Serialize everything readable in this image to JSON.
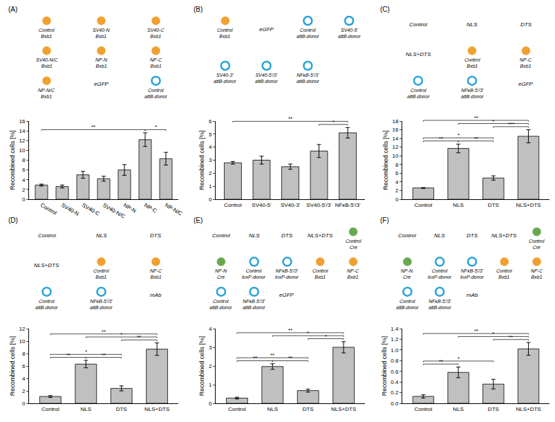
{
  "chart_data": [
    {
      "type": "bar",
      "title": "(A)",
      "annotations": [
        "Control Bxb1",
        "SV40-N Bxb1",
        "SV40-C Bxb1",
        "SV40-N/C Bxb1",
        "NP-N Bxb1",
        "NP-C Bxb1",
        "NP-N/C Bxb1",
        "eGFP",
        "Control attB-donor"
      ],
      "categories": [
        "Control",
        "SV40-N",
        "SV40-C",
        "SV40-N/C",
        "NP-N",
        "NP-C",
        "NP-N/C"
      ],
      "values": [
        2.9,
        2.6,
        5.0,
        4.2,
        6.0,
        12.2,
        8.3
      ],
      "errors": [
        0.2,
        0.3,
        0.7,
        0.5,
        1.1,
        1.4,
        1.3
      ],
      "color": "#c0c0c0",
      "y_label": "Recombined cells [%]",
      "ylim": [
        0,
        16
      ],
      "yticks": [
        0,
        2,
        4,
        6,
        8,
        10,
        12,
        14,
        16
      ],
      "significance": [
        {
          "from": "NP-C",
          "to": "NP-N/C",
          "label": "*"
        },
        {
          "from": "Control",
          "to": "NP-C",
          "label": "**"
        }
      ]
    },
    {
      "type": "bar",
      "title": "(B)",
      "annotations": [
        "Control Bxb1",
        "eGFP",
        "Control attB-donor",
        "SV40-5' attB-donor",
        "SV40-3' attB-donor",
        "SV40-5'/3' attB-donor",
        "NFκB-5'/3' attB-donor"
      ],
      "categories": [
        "Control",
        "SV40-5'",
        "SV40-3'",
        "SV40-5'/3'",
        "NFκB-5'/3'"
      ],
      "values": [
        2.8,
        3.0,
        2.5,
        3.7,
        5.1
      ],
      "errors": [
        0.1,
        0.3,
        0.2,
        0.5,
        0.4
      ],
      "color": "#c0c0c0",
      "y_label": "Recombined cells [%]",
      "ylim": [
        0,
        6
      ],
      "yticks": [
        0,
        1,
        2,
        3,
        4,
        5,
        6
      ],
      "significance": [
        {
          "from": "SV40-5'/3'",
          "to": "NFκB-5'/3'",
          "label": "*"
        },
        {
          "from": "Control",
          "to": "NFκB-5'/3'",
          "label": "**"
        }
      ]
    },
    {
      "type": "bar",
      "title": "(C)",
      "annotations": [
        "Control",
        "NLS",
        "DTS",
        "NLS+DTS",
        "Control Bxb1",
        "NP-C Bxb1",
        "Control attB-donor",
        "NFκB-5'/3' attB-donor",
        "eGFP"
      ],
      "categories": [
        "Control",
        "NLS",
        "DTS",
        "NLS+DTS"
      ],
      "values": [
        2.6,
        11.7,
        4.9,
        14.5
      ],
      "errors": [
        0.1,
        1.0,
        0.5,
        1.5
      ],
      "color": "#c0c0c0",
      "y_label": "Recombined cells [%]",
      "ylim": [
        0,
        18
      ],
      "yticks": [
        0,
        2,
        4,
        6,
        8,
        10,
        12,
        14,
        16,
        18
      ],
      "significance": [
        {
          "from": "Control",
          "to": "NLS",
          "label": "**"
        },
        {
          "from": "NLS",
          "to": "DTS",
          "label": "**"
        },
        {
          "from": "DTS",
          "to": "NLS+DTS",
          "label": "***"
        },
        {
          "from": "Control",
          "to": "DTS",
          "label": "*"
        },
        {
          "from": "NLS",
          "to": "NLS+DTS",
          "label": "*"
        },
        {
          "from": "Control",
          "to": "NLS+DTS",
          "label": "**"
        }
      ]
    },
    {
      "type": "bar",
      "title": "(D)",
      "annotations": [
        "Control",
        "NLS",
        "DTS",
        "NLS+DTS",
        "Control Bxb1",
        "NP-C Bxb1",
        "Control attB-donor",
        "NFκB-5'/3' attB-donor",
        "mAb"
      ],
      "categories": [
        "Control",
        "NLS",
        "DTS",
        "NLS+DTS"
      ],
      "values": [
        1.1,
        6.3,
        2.4,
        8.7
      ],
      "errors": [
        0.15,
        0.6,
        0.4,
        1.0
      ],
      "color": "#c0c0c0",
      "y_label": "Recombined cells [%]",
      "ylim": [
        0,
        12
      ],
      "yticks": [
        0,
        2,
        4,
        6,
        8,
        10,
        12
      ],
      "significance": [
        {
          "from": "Control",
          "to": "NLS",
          "label": "**"
        },
        {
          "from": "NLS",
          "to": "DTS",
          "label": "**"
        },
        {
          "from": "DTS",
          "to": "NLS+DTS",
          "label": "**"
        },
        {
          "from": "Control",
          "to": "DTS",
          "label": "*"
        },
        {
          "from": "NLS",
          "to": "NLS+DTS",
          "label": "*"
        },
        {
          "from": "Control",
          "to": "NLS+DTS",
          "label": "**"
        }
      ]
    },
    {
      "type": "bar",
      "title": "(E)",
      "annotations": [
        "Control",
        "NLS",
        "DTS",
        "NLS+DTS",
        "Control Cre",
        "NP-N Cre",
        "Control loxP-donor",
        "NFκB-5'/3' loxP-donor",
        "Control Bxb1",
        "NP-C Bxb1",
        "Control attB-donor",
        "NFκB-5'/3' attB-donor",
        "eGFP"
      ],
      "categories": [
        "Control",
        "NLS",
        "DTS",
        "NLS+DTS"
      ],
      "values": [
        0.28,
        1.97,
        0.68,
        3.0
      ],
      "errors": [
        0.05,
        0.15,
        0.08,
        0.3
      ],
      "color": "#c0c0c0",
      "y_label": "Recombined cells [%]",
      "ylim": [
        0,
        4
      ],
      "yticks": [
        0,
        1,
        2,
        3,
        4
      ],
      "significance": [
        {
          "from": "Control",
          "to": "NLS",
          "label": "**"
        },
        {
          "from": "NLS",
          "to": "DTS",
          "label": "**"
        },
        {
          "from": "DTS",
          "to": "NLS+DTS",
          "label": "*"
        },
        {
          "from": "Control",
          "to": "DTS",
          "label": "**"
        },
        {
          "from": "NLS",
          "to": "NLS+DTS",
          "label": "*"
        },
        {
          "from": "Control",
          "to": "NLS+DTS",
          "label": "**"
        }
      ]
    },
    {
      "type": "bar",
      "title": "(F)",
      "annotations": [
        "Control",
        "NLS",
        "DTS",
        "NLS+DTS",
        "Control Cre",
        "NP-N Cre",
        "Control loxP-donor",
        "NFκB-5'/3' loxP-donor",
        "Control Bxb1",
        "NP-C Bxb1",
        "Control attB-donor",
        "NFκB-5'/3' attB-donor",
        "mAb"
      ],
      "categories": [
        "Control",
        "NLS",
        "DTS",
        "NLS+DTS"
      ],
      "values": [
        0.13,
        0.58,
        0.36,
        1.02
      ],
      "errors": [
        0.03,
        0.1,
        0.09,
        0.12
      ],
      "color": "#c0c0c0",
      "y_label": "Recombined cells [%]",
      "ylim": [
        0,
        1.4
      ],
      "yticks": [
        {
          "value": 0,
          "label": "0.0"
        },
        0.2,
        0.4,
        0.6,
        0.8,
        {
          "value": 1,
          "label": "1.0"
        },
        1.2,
        1.4
      ],
      "significance": [
        {
          "from": "Control",
          "to": "NLS",
          "label": "**"
        },
        {
          "from": "DTS",
          "to": "NLS+DTS",
          "label": "**"
        },
        {
          "from": "Control",
          "to": "DTS",
          "label": "*"
        },
        {
          "from": "NLS",
          "to": "NLS+DTS",
          "label": "*"
        },
        {
          "from": "Control",
          "to": "NLS+DTS",
          "label": "**"
        }
      ]
    }
  ]
}
